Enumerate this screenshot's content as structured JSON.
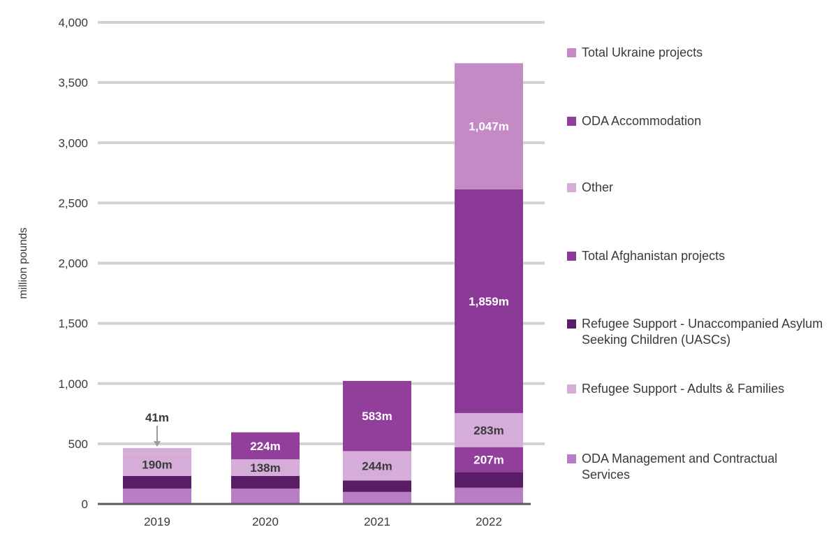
{
  "chart_data": {
    "type": "bar",
    "stacked": true,
    "ylabel": "million pounds",
    "ylim": [
      0,
      4000
    ],
    "yticks": [
      0,
      500,
      1000,
      1500,
      2000,
      2500,
      3000,
      3500,
      4000
    ],
    "ytick_labels": [
      "0",
      "500",
      "1,000",
      "1,500",
      "2,000",
      "2,500",
      "3,000",
      "3,500",
      "4,000"
    ],
    "categories": [
      "2019",
      "2020",
      "2021",
      "2022"
    ],
    "legend_position": "right",
    "series": [
      {
        "name": "ODA Management and Contractual Services",
        "color": "#b97cc6",
        "values": [
          128,
          128,
          100,
          135
        ],
        "labels": [
          "",
          "",
          "",
          ""
        ]
      },
      {
        "name": "Refugee Support - Unaccompanied Asylum Seeking Children (UASCs)",
        "color": "#5a1c66",
        "values": [
          105,
          105,
          95,
          130
        ],
        "labels": [
          "",
          "",
          "",
          ""
        ]
      },
      {
        "name": "Refugee Support - Adults & Families",
        "color": "#d6add9",
        "values": [
          190,
          138,
          244,
          0
        ],
        "labels": [
          "190m",
          "138m",
          "244m",
          ""
        ]
      },
      {
        "name": "ODA Accommodation",
        "color": "#923f9c",
        "values": [
          0,
          224,
          583,
          207
        ],
        "labels": [
          "",
          "224m",
          "583m",
          "207m"
        ]
      },
      {
        "name": "Other",
        "color": "#d6add9",
        "values": [
          41,
          0,
          0,
          283
        ],
        "labels": [
          "41m",
          "",
          "",
          "283m"
        ]
      },
      {
        "name": "Total Afghanistan projects",
        "color": "#8a3a96",
        "values": [
          0,
          0,
          0,
          1859
        ],
        "labels": [
          "",
          "",
          "",
          "1,859m"
        ]
      },
      {
        "name": "Total Ukraine projects",
        "color": "#c38ac6",
        "values": [
          0,
          0,
          0,
          1047
        ],
        "labels": [
          "",
          "",
          "",
          "1,047m"
        ]
      }
    ],
    "legend": [
      {
        "label": "Total Ukraine projects",
        "color": "#c38ac6"
      },
      {
        "label": "ODA Accommodation",
        "color": "#923f9c"
      },
      {
        "label": "Other",
        "color": "#d6add9"
      },
      {
        "label": "Total Afghanistan projects",
        "color": "#8a3a96"
      },
      {
        "label": "Refugee Support - Unaccompanied Asylum Seeking Children (UASCs)",
        "color": "#5a1c66"
      },
      {
        "label": "Refugee Support - Adults & Families",
        "color": "#d6add9"
      },
      {
        "label": "ODA Management and Contractual Services",
        "color": "#b97cc6"
      }
    ]
  }
}
